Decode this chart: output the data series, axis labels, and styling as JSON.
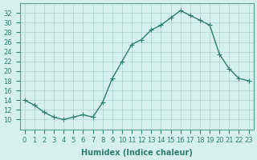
{
  "xlabel": "Humidex (Indice chaleur)",
  "ylabel": "",
  "x": [
    0,
    1,
    2,
    3,
    4,
    5,
    6,
    7,
    8,
    9,
    10,
    11,
    12,
    13,
    14,
    15,
    16,
    17,
    18,
    19,
    20,
    21,
    22,
    23
  ],
  "y": [
    14,
    13,
    11.5,
    10.5,
    10,
    10.5,
    11,
    10.5,
    13.5,
    18.5,
    22,
    25.5,
    26.5,
    28.5,
    29.5,
    31,
    32.5,
    31.5,
    30.5,
    29.5,
    23.5,
    20.5,
    18.5,
    18
  ],
  "line_color": "#2e7d6e",
  "marker": "+",
  "bg_color": "#d6f0ee",
  "grid_color": "#aad4ce",
  "xlim": [
    -0.5,
    23.5
  ],
  "ylim": [
    8,
    34
  ],
  "yticks": [
    10,
    12,
    14,
    16,
    18,
    20,
    22,
    24,
    26,
    28,
    30,
    32
  ],
  "xticks": [
    0,
    1,
    2,
    3,
    4,
    5,
    6,
    7,
    8,
    9,
    10,
    11,
    12,
    13,
    14,
    15,
    16,
    17,
    18,
    19,
    20,
    21,
    22,
    23
  ],
  "xtick_labels": [
    "0",
    "1",
    "2",
    "3",
    "4",
    "5",
    "6",
    "7",
    "8",
    "9",
    "10",
    "11",
    "12",
    "13",
    "14",
    "15",
    "16",
    "17",
    "18",
    "19",
    "20",
    "21",
    "22",
    "23"
  ],
  "axis_color": "#5a9e90",
  "label_fontsize": 7,
  "tick_fontsize": 6
}
